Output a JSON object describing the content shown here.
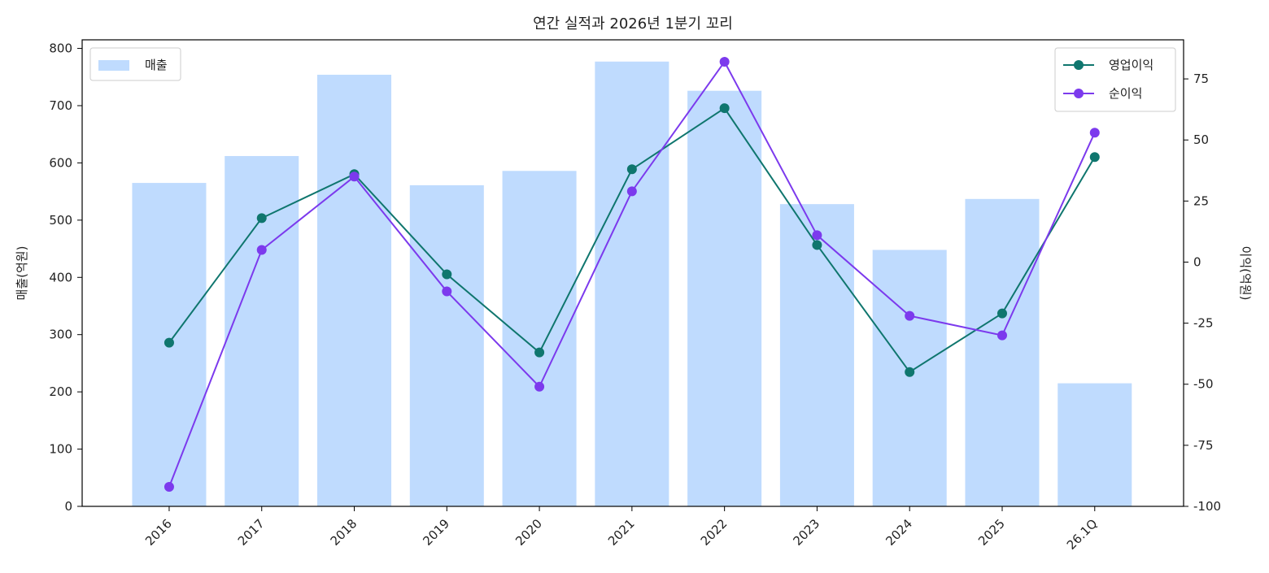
{
  "chart_data": {
    "type": "bar+line",
    "title": "연간 실적과 2026년 1분기 꼬리",
    "categories": [
      "2016",
      "2017",
      "2018",
      "2019",
      "2020",
      "2021",
      "2022",
      "2023",
      "2024",
      "2025",
      "26.1Q"
    ],
    "bars": {
      "name": "매출",
      "color": "#bfdbfe",
      "values": [
        565,
        612,
        754,
        561,
        586,
        777,
        726,
        528,
        448,
        537,
        215
      ]
    },
    "lines": [
      {
        "name": "영업이익",
        "color": "#0f766e",
        "values": [
          -33,
          18,
          36,
          -5,
          -37,
          38,
          63,
          7,
          -45,
          -21,
          43
        ]
      },
      {
        "name": "순이익",
        "color": "#7c3aed",
        "values": [
          -92,
          5,
          35,
          -12,
          -51,
          29,
          82,
          11,
          -22,
          -30,
          53
        ]
      }
    ],
    "y_left": {
      "label": "매출(억원)",
      "range": [
        0,
        815
      ],
      "ticks": [
        0,
        100,
        200,
        300,
        400,
        500,
        600,
        700,
        800
      ]
    },
    "y_right": {
      "label": "이익(억원)",
      "range": [
        -100,
        91
      ],
      "ticks": [
        -100,
        -75,
        -50,
        -25,
        0,
        25,
        50,
        75
      ]
    },
    "legend_left": "top-left",
    "legend_right": "top-right",
    "grid": false
  }
}
